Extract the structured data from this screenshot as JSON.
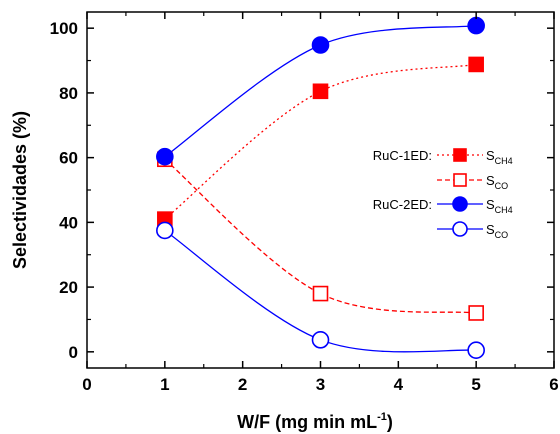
{
  "chart_data": {
    "type": "line",
    "xlabel": "W/F (mg min mL",
    "xlabel_sup": "-1",
    "xlabel_close": ")",
    "ylabel": "Selectividades (%)",
    "xlim": [
      0,
      6
    ],
    "ylim": [
      -5,
      105
    ],
    "xticks": [
      "0",
      "1",
      "2",
      "3",
      "4",
      "5",
      "6"
    ],
    "yticks": [
      "0",
      "20",
      "40",
      "60",
      "80",
      "100"
    ],
    "grid": false,
    "legend_position": "center-right",
    "series": [
      {
        "group": "RuC-1ED:",
        "symbol": "S",
        "sub": "CH4",
        "color": "#ff0000",
        "marker": "square",
        "filled": true,
        "line": "dotted",
        "x": [
          1,
          3,
          5
        ],
        "y": [
          41,
          80.5,
          88.8
        ]
      },
      {
        "group": "",
        "symbol": "S",
        "sub": "CO",
        "color": "#ff0000",
        "marker": "square",
        "filled": false,
        "line": "dashed",
        "x": [
          1,
          3,
          5
        ],
        "y": [
          59.5,
          18,
          12
        ]
      },
      {
        "group": "RuC-2ED:",
        "symbol": "S",
        "sub": "CH4",
        "color": "#0000ff",
        "marker": "circle",
        "filled": true,
        "line": "solid",
        "x": [
          1,
          3,
          5
        ],
        "y": [
          60.3,
          94.8,
          100.8
        ]
      },
      {
        "group": "",
        "symbol": "S",
        "sub": "CO",
        "color": "#0000ff",
        "marker": "circle",
        "filled": false,
        "line": "solid",
        "x": [
          1,
          3,
          5
        ],
        "y": [
          37.5,
          3.7,
          0.5
        ]
      }
    ]
  }
}
